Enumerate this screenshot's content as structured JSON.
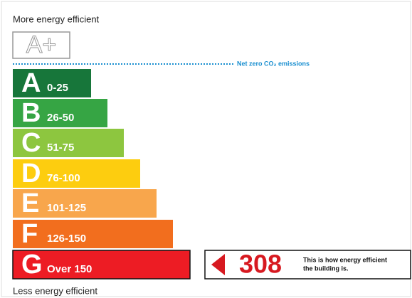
{
  "top_label": "More energy efficient",
  "aplus_label": "A+",
  "net_zero_label": "Net zero CO₂ emissions",
  "bands": [
    {
      "letter": "A",
      "range": "0-25",
      "color": "#17763a"
    },
    {
      "letter": "B",
      "range": "26-50",
      "color": "#36a544"
    },
    {
      "letter": "C",
      "range": "51-75",
      "color": "#8dc63f"
    },
    {
      "letter": "D",
      "range": "76-100",
      "color": "#fdcd0f"
    },
    {
      "letter": "E",
      "range": "101-125",
      "color": "#f8a64c"
    },
    {
      "letter": "F",
      "range": "126-150",
      "color": "#f26e1e"
    },
    {
      "letter": "G",
      "range": "Over 150",
      "color": "#ed1c24"
    }
  ],
  "rating": {
    "value": "308",
    "text": [
      "This is how energy efficient",
      "the building is."
    ]
  },
  "bottom_label": "Less energy efficient"
}
